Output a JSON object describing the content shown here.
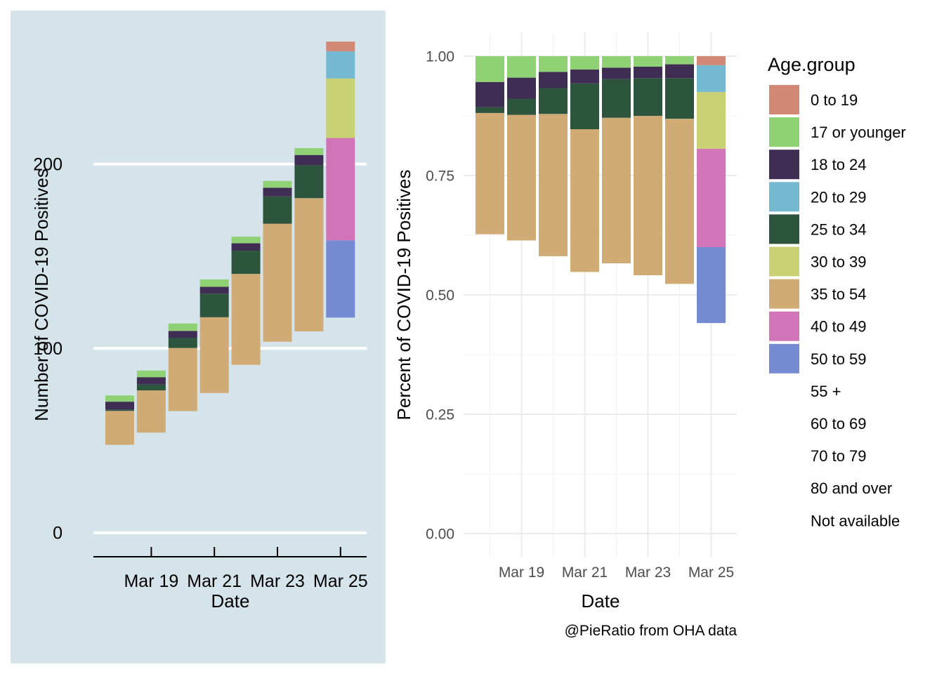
{
  "legend": {
    "title": "Age.group",
    "items": [
      {
        "label": "0 to 19",
        "color": "#d18975"
      },
      {
        "label": "17 or younger",
        "color": "#8fd175"
      },
      {
        "label": "18 to 24",
        "color": "#3f2d54"
      },
      {
        "label": "20 to 29",
        "color": "#75b8d1"
      },
      {
        "label": "25 to 34",
        "color": "#2d543d"
      },
      {
        "label": "30 to 39",
        "color": "#c9d175"
      },
      {
        "label": "35 to 54",
        "color": "#d1ab75"
      },
      {
        "label": "40 to 49",
        "color": "#d175b8"
      },
      {
        "label": "50 to 59",
        "color": "#758bd1"
      },
      {
        "label": "55 +",
        "color": null
      },
      {
        "label": "60 to 69",
        "color": null
      },
      {
        "label": "70 to 79",
        "color": null
      },
      {
        "label": "80 and over",
        "color": null
      },
      {
        "label": "Not available",
        "color": null
      }
    ]
  },
  "caption": "@PieRatio from OHA data",
  "chart_data": [
    {
      "type": "bar",
      "stacked": true,
      "xlabel": "Date",
      "ylabel": "Number of COVID-19 Positives",
      "x_tick_labels": [
        "Mar 19",
        "Mar 21",
        "Mar 23",
        "Mar 25"
      ],
      "y_ticks": [
        0,
        100,
        200
      ],
      "ylim": [
        -13,
        268
      ],
      "grid": "horizontal major lines",
      "background": "#d5e4eb",
      "categories": [
        "Mar 18",
        "Mar 19",
        "Mar 20",
        "Mar 21",
        "Mar 22",
        "Mar 23",
        "Mar 24",
        "Mar 25"
      ],
      "bars": [
        {
          "date": "Mar 18",
          "base": 47.7,
          "segments": [
            {
              "group": "35 to 54",
              "value": 18.4
            },
            {
              "group": "25 to 34",
              "value": 0.8
            },
            {
              "group": "18 to 24",
              "value": 4.2
            },
            {
              "group": "17 or younger",
              "value": 3.4
            }
          ]
        },
        {
          "date": "Mar 19",
          "base": 54.3,
          "segments": [
            {
              "group": "35 to 54",
              "value": 22.9
            },
            {
              "group": "25 to 34",
              "value": 3.2
            },
            {
              "group": "18 to 24",
              "value": 4.0
            },
            {
              "group": "17 or younger",
              "value": 3.6
            }
          ]
        },
        {
          "date": "Mar 20",
          "base": 66.0,
          "segments": [
            {
              "group": "35 to 54",
              "value": 34.2
            },
            {
              "group": "25 to 34",
              "value": 5.6
            },
            {
              "group": "18 to 24",
              "value": 3.7
            },
            {
              "group": "17 or younger",
              "value": 4.0
            }
          ]
        },
        {
          "date": "Mar 21",
          "base": 75.8,
          "segments": [
            {
              "group": "35 to 54",
              "value": 41.1
            },
            {
              "group": "25 to 34",
              "value": 12.8
            },
            {
              "group": "18 to 24",
              "value": 3.7
            },
            {
              "group": "17 or younger",
              "value": 4.0
            }
          ]
        },
        {
          "date": "Mar 22",
          "base": 91.1,
          "segments": [
            {
              "group": "35 to 54",
              "value": 49.3
            },
            {
              "group": "25 to 34",
              "value": 12.6
            },
            {
              "group": "18 to 24",
              "value": 4.0
            },
            {
              "group": "17 or younger",
              "value": 3.6
            }
          ]
        },
        {
          "date": "Mar 23",
          "base": 103.6,
          "segments": [
            {
              "group": "35 to 54",
              "value": 64.0
            },
            {
              "group": "25 to 34",
              "value": 14.8
            },
            {
              "group": "18 to 24",
              "value": 4.7
            },
            {
              "group": "17 or younger",
              "value": 3.7
            }
          ]
        },
        {
          "date": "Mar 24",
          "base": 109.2,
          "segments": [
            {
              "group": "35 to 54",
              "value": 72.3
            },
            {
              "group": "25 to 34",
              "value": 17.8
            },
            {
              "group": "18 to 24",
              "value": 5.6
            },
            {
              "group": "17 or younger",
              "value": 3.7
            }
          ]
        },
        {
          "date": "Mar 25",
          "base": 116.7,
          "segments": [
            {
              "group": "50 to 59",
              "value": 41.9
            },
            {
              "group": "40 to 49",
              "value": 55.5
            },
            {
              "group": "30 to 39",
              "value": 32.3
            },
            {
              "group": "20 to 29",
              "value": 14.7
            },
            {
              "group": "0 to 19",
              "value": 5.3
            }
          ]
        }
      ]
    },
    {
      "type": "bar",
      "stacked": true,
      "xlabel": "Date",
      "ylabel": "Percent of COVID-19 Positives",
      "x_tick_labels": [
        "Mar 19",
        "Mar 21",
        "Mar 23",
        "Mar 25"
      ],
      "y_ticks": [
        0.0,
        0.25,
        0.5,
        0.75,
        1.0
      ],
      "y_tick_labels": [
        "0.00",
        "0.25",
        "0.50",
        "0.75",
        "1.00"
      ],
      "ylim": [
        -0.05,
        1.05
      ],
      "grid": "major and minor lines",
      "background": "#ffffff",
      "categories": [
        "Mar 18",
        "Mar 19",
        "Mar 20",
        "Mar 21",
        "Mar 22",
        "Mar 23",
        "Mar 24",
        "Mar 25"
      ],
      "bars": [
        {
          "date": "Mar 18",
          "base": 0.627,
          "segments": [
            {
              "group": "35 to 54",
              "value": 0.254
            },
            {
              "group": "25 to 34",
              "value": 0.012
            },
            {
              "group": "18 to 24",
              "value": 0.053
            },
            {
              "group": "17 or younger",
              "value": 0.054
            }
          ]
        },
        {
          "date": "Mar 19",
          "base": 0.614,
          "segments": [
            {
              "group": "35 to 54",
              "value": 0.263
            },
            {
              "group": "25 to 34",
              "value": 0.034
            },
            {
              "group": "18 to 24",
              "value": 0.044
            },
            {
              "group": "17 or younger",
              "value": 0.045
            }
          ]
        },
        {
          "date": "Mar 20",
          "base": 0.581,
          "segments": [
            {
              "group": "35 to 54",
              "value": 0.298
            },
            {
              "group": "25 to 34",
              "value": 0.054
            },
            {
              "group": "18 to 24",
              "value": 0.034
            },
            {
              "group": "17 or younger",
              "value": 0.033
            }
          ]
        },
        {
          "date": "Mar 21",
          "base": 0.548,
          "segments": [
            {
              "group": "35 to 54",
              "value": 0.299
            },
            {
              "group": "25 to 34",
              "value": 0.096
            },
            {
              "group": "18 to 24",
              "value": 0.029
            },
            {
              "group": "17 or younger",
              "value": 0.028
            }
          ]
        },
        {
          "date": "Mar 22",
          "base": 0.566,
          "segments": [
            {
              "group": "35 to 54",
              "value": 0.305
            },
            {
              "group": "25 to 34",
              "value": 0.081
            },
            {
              "group": "18 to 24",
              "value": 0.024
            },
            {
              "group": "17 or younger",
              "value": 0.024
            }
          ]
        },
        {
          "date": "Mar 23",
          "base": 0.541,
          "segments": [
            {
              "group": "35 to 54",
              "value": 0.334
            },
            {
              "group": "25 to 34",
              "value": 0.079
            },
            {
              "group": "18 to 24",
              "value": 0.024
            },
            {
              "group": "17 or younger",
              "value": 0.022
            }
          ]
        },
        {
          "date": "Mar 24",
          "base": 0.523,
          "segments": [
            {
              "group": "35 to 54",
              "value": 0.346
            },
            {
              "group": "25 to 34",
              "value": 0.085
            },
            {
              "group": "18 to 24",
              "value": 0.029
            },
            {
              "group": "17 or younger",
              "value": 0.017
            }
          ]
        },
        {
          "date": "Mar 25",
          "base": 0.441,
          "segments": [
            {
              "group": "50 to 59",
              "value": 0.159
            },
            {
              "group": "40 to 49",
              "value": 0.206
            },
            {
              "group": "30 to 39",
              "value": 0.119
            },
            {
              "group": "20 to 29",
              "value": 0.056
            },
            {
              "group": "0 to 19",
              "value": 0.019
            }
          ]
        }
      ]
    }
  ]
}
